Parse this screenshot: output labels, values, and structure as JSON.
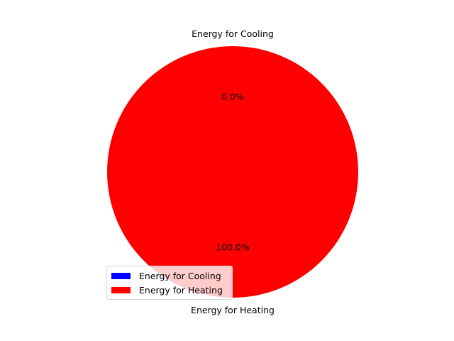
{
  "chart_data": {
    "type": "pie",
    "title": "",
    "legend_placement": "lower-left",
    "start_angle_deg": 90,
    "slices": [
      {
        "label": "Energy for Cooling",
        "value": 0.0,
        "pct_label": "0.0%",
        "color": "#0000ff"
      },
      {
        "label": "Energy for Heating",
        "value": 100.0,
        "pct_label": "100.0%",
        "color": "#ff0000"
      }
    ]
  }
}
